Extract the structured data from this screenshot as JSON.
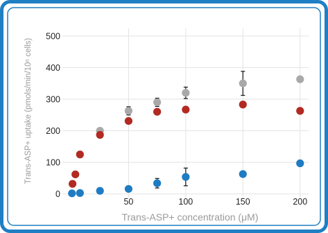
{
  "colors": {
    "frame_outer": "#1f7fc4",
    "frame_inner": "#1f7fc4",
    "grid": "#e3e3e3",
    "grey_series": "#a9a9a9",
    "red_series": "#b22a22",
    "blue_series": "#1f7cc2",
    "error_bar": "#111111"
  },
  "chart_data": {
    "type": "scatter",
    "xlabel": "Trans-ASP+ concentration (μM)",
    "ylabel": "Trans-ASP+ uptake (pmols/min/10⁶ cells)",
    "xlim": [
      -3,
      205
    ],
    "ylim": [
      -5,
      515
    ],
    "x_ticks": [
      50,
      100,
      150,
      200
    ],
    "y_ticks": [
      0,
      100,
      200,
      300,
      400,
      500
    ],
    "grid": true,
    "legend": "none",
    "series": [
      {
        "color_key": "grey_series",
        "x": [
          25,
          50,
          75,
          100,
          150,
          200
        ],
        "y": [
          200,
          263,
          290,
          320,
          350,
          363
        ],
        "err": [
          0,
          13,
          13,
          18,
          38,
          0
        ]
      },
      {
        "color_key": "red_series",
        "x": [
          1,
          3.5,
          7.5,
          25,
          50,
          75,
          100,
          150,
          200
        ],
        "y": [
          32,
          62,
          125,
          187,
          231,
          260,
          267,
          283,
          263
        ],
        "err": [
          0,
          0,
          0,
          0,
          0,
          0,
          0,
          0,
          0
        ]
      },
      {
        "color_key": "blue_series",
        "x": [
          0.5,
          7.5,
          25,
          50,
          75,
          100,
          150,
          200
        ],
        "y": [
          2,
          3,
          10,
          16,
          34,
          54,
          63,
          97
        ],
        "err": [
          0,
          0,
          0,
          0,
          15,
          28,
          0,
          0
        ]
      }
    ]
  }
}
